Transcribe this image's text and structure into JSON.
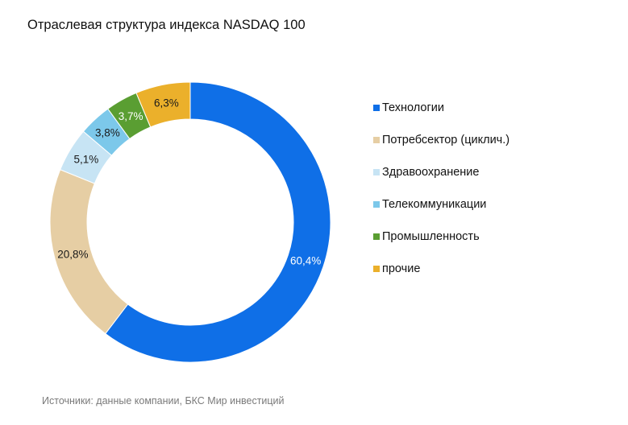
{
  "chart_data": {
    "type": "pie",
    "title": "Отраслевая структура индекса NASDAQ 100",
    "categories": [
      "Технологии",
      "Потребсектор (циклич.)",
      "Здравоохранение",
      "Телекоммуникации",
      "Промышленность",
      "прочие"
    ],
    "values": [
      60.4,
      20.8,
      5.1,
      3.8,
      3.7,
      6.3
    ],
    "data_labels": [
      "60,4%",
      "20,8%",
      "5,1%",
      "3,8%",
      "3,7%",
      "6,3%"
    ],
    "colors": [
      "#0f6fe7",
      "#e6cea4",
      "#c7e4f4",
      "#7cc8ea",
      "#5a9e32",
      "#ebb02b"
    ],
    "label_colors": [
      "#ffffff",
      "#1a1a1a",
      "#1a1a1a",
      "#1a1a1a",
      "#ffffff",
      "#1a1a1a"
    ],
    "donut": true,
    "legend_position": "right"
  },
  "source": "Источники: данные компании, БКС Мир инвестиций"
}
